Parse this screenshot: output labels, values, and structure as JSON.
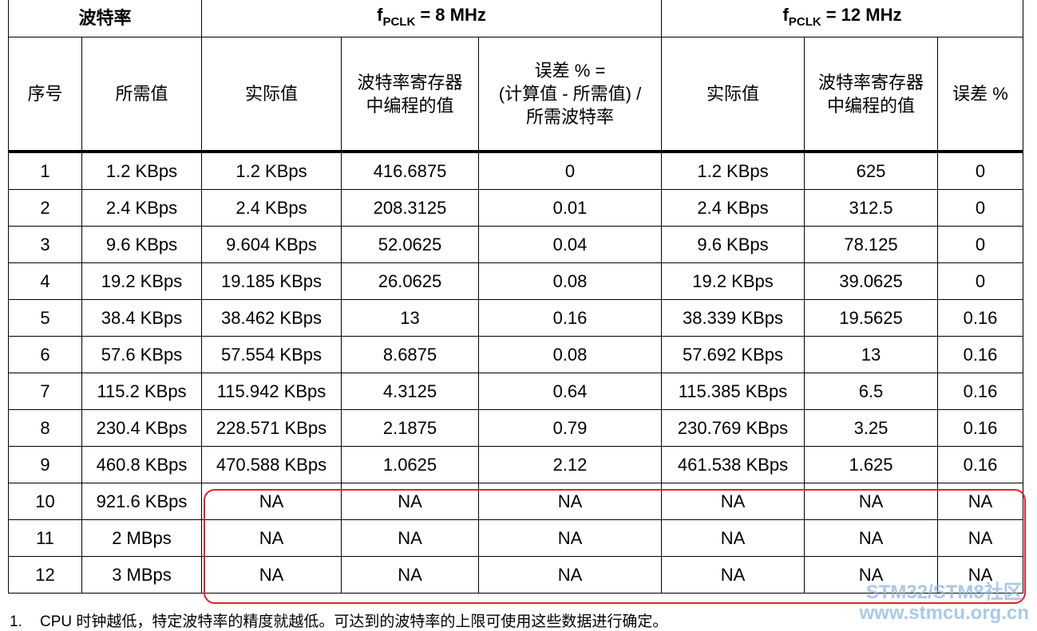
{
  "header": {
    "group_row": [
      "波特率",
      {
        "symbol": "f",
        "subscript": "PCLK",
        "text": "= 8 MHz"
      },
      {
        "symbol": "f",
        "subscript": "PCLK",
        "text": "= 12 MHz"
      }
    ],
    "columns": [
      [
        "序号"
      ],
      [
        "所需值"
      ],
      [
        "实际值"
      ],
      [
        "波特率寄存器",
        "中编程的值"
      ],
      [
        "误差 % =",
        "(计算值 - 所需值) /",
        "所需波特率"
      ],
      [
        "实际值"
      ],
      [
        "波特率寄存器",
        "中编程的值"
      ],
      [
        "误差 %"
      ]
    ]
  },
  "table": {
    "rows": [
      [
        "1",
        "1.2 KBps",
        "1.2 KBps",
        "416.6875",
        "0",
        "1.2 KBps",
        "625",
        "0"
      ],
      [
        "2",
        "2.4 KBps",
        "2.4 KBps",
        "208.3125",
        "0.01",
        "2.4 KBps",
        "312.5",
        "0"
      ],
      [
        "3",
        "9.6 KBps",
        "9.604 KBps",
        "52.0625",
        "0.04",
        "9.6 KBps",
        "78.125",
        "0"
      ],
      [
        "4",
        "19.2 KBps",
        "19.185 KBps",
        "26.0625",
        "0.08",
        "19.2 KBps",
        "39.0625",
        "0"
      ],
      [
        "5",
        "38.4 KBps",
        "38.462 KBps",
        "13",
        "0.16",
        "38.339 KBps",
        "19.5625",
        "0.16"
      ],
      [
        "6",
        "57.6 KBps",
        "57.554 KBps",
        "8.6875",
        "0.08",
        "57.692 KBps",
        "13",
        "0.16"
      ],
      [
        "7",
        "115.2 KBps",
        "115.942 KBps",
        "4.3125",
        "0.64",
        "115.385 KBps",
        "6.5",
        "0.16"
      ],
      [
        "8",
        "230.4 KBps",
        "228.571 KBps",
        "2.1875",
        "0.79",
        "230.769 KBps",
        "3.25",
        "0.16"
      ],
      [
        "9",
        "460.8 KBps",
        "470.588 KBps",
        "1.0625",
        "2.12",
        "461.538 KBps",
        "1.625",
        "0.16"
      ],
      [
        "10",
        "921.6 KBps",
        "NA",
        "NA",
        "NA",
        "NA",
        "NA",
        "NA"
      ],
      [
        "11",
        "2 MBps",
        "NA",
        "NA",
        "NA",
        "NA",
        "NA",
        "NA"
      ],
      [
        "12",
        "3 MBps",
        "NA",
        "NA",
        "NA",
        "NA",
        "NA",
        "NA"
      ]
    ]
  },
  "footnote": {
    "number": "1.",
    "text": "CPU 时钟越低，特定波特率的精度就越低。可达到的波特率的上限可使用这些数据进行确定。"
  },
  "watermark": {
    "line1": "STM32/STM8社区",
    "line2": "www.stmcu.org.cn"
  }
}
